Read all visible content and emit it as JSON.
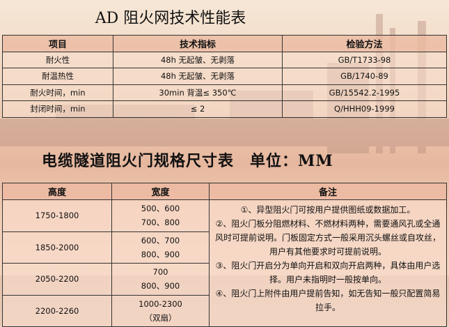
{
  "title1": "AD 阻火网技术性能表",
  "table1": {
    "headers": [
      "项目",
      "技术指标",
      "检验方法"
    ],
    "rows": [
      [
        "耐火性",
        "48h 无起皱、无剥落",
        "GB/T1733-98"
      ],
      [
        "耐温热性",
        "48h 无起皱、无剥落",
        "GB/1740-89"
      ],
      [
        "耐火时间，min",
        "30min 背温≤ 350℃",
        "GB/15542.2-1995"
      ],
      [
        "封闭时间，min",
        "≤ 2",
        "Q/HHH09-1999"
      ]
    ]
  },
  "title2": "电缆隧道阻火门规格尺寸表　单位：MM",
  "table2": {
    "headers": [
      "高度",
      "宽度",
      "备注"
    ],
    "rows": [
      [
        "1750-1800",
        "500、600",
        "700、800"
      ],
      [
        "1850-2000",
        "600、700",
        "800、900"
      ],
      [
        "2050-2200",
        "700",
        "800、900"
      ],
      [
        "2200-2260",
        "1000-2300",
        "（双扇）"
      ]
    ],
    "notes": [
      "①、异型阻火门可按用户提供图纸或数据加工。",
      "②、阻火门板分阻燃材料、不燃材料两种，需要通风孔或全通风时可提前说明。门板固定方式一般采用沉头螺丝或自攻丝，用户有其他要求时可提前说明。",
      "③、阻火门开启分为单向开启和双向开启两种，具体由用户选择。用户未指明时一般按单向。",
      "④、阻火门上附件由用户提前告知，如无告知一般只配置简易拉手。"
    ]
  }
}
